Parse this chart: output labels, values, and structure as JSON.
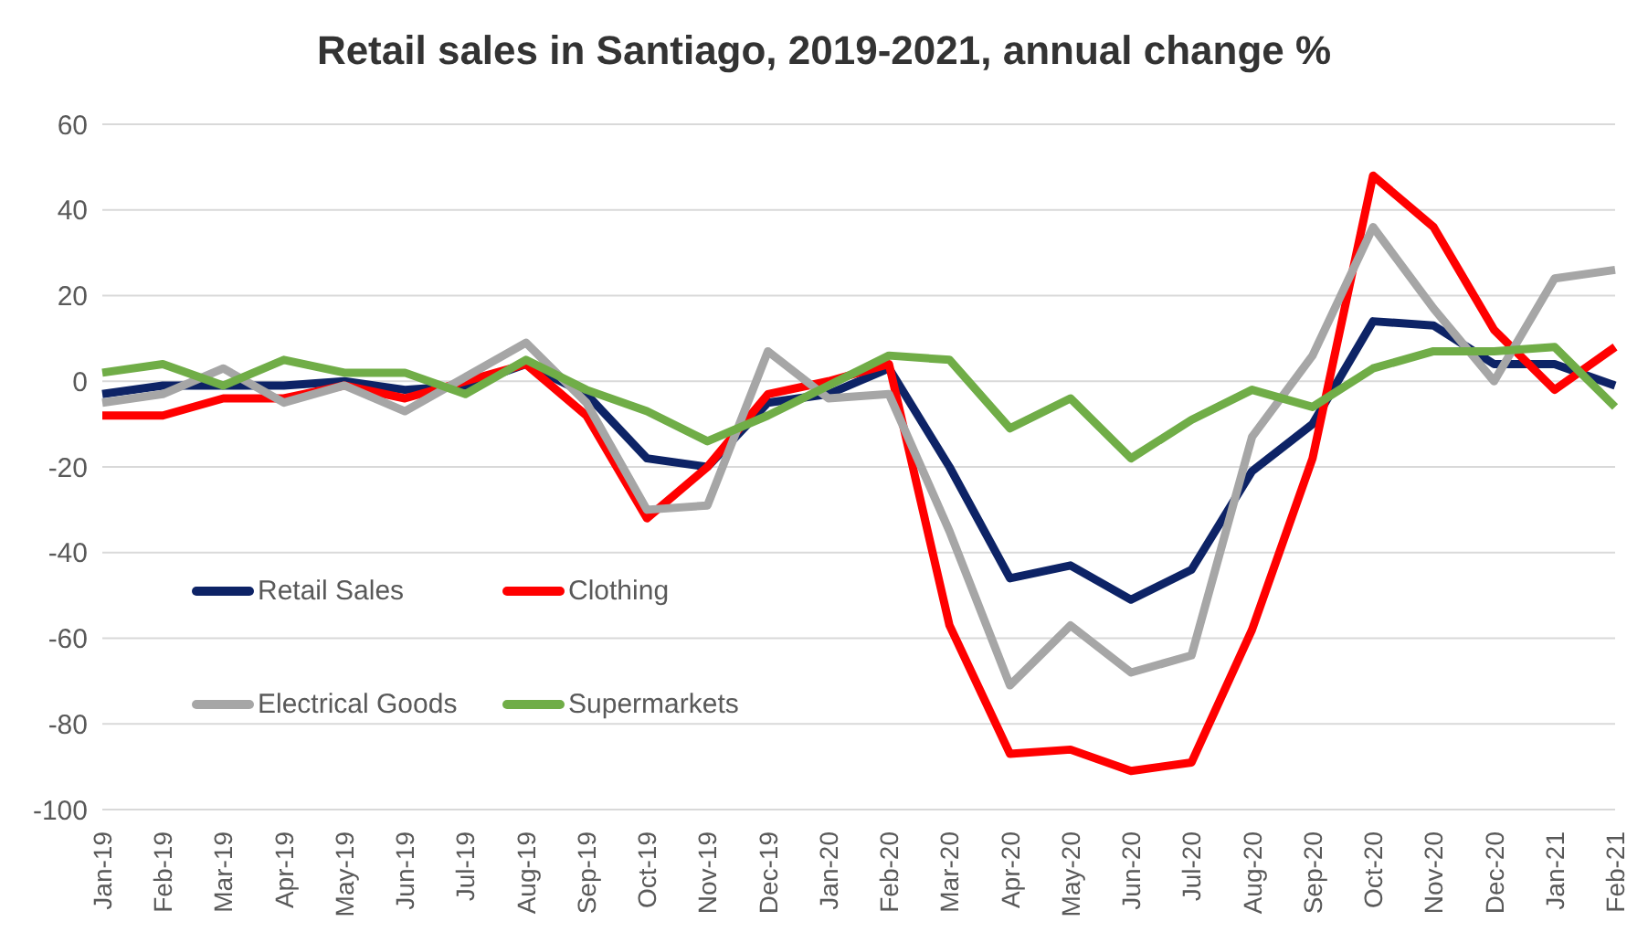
{
  "chart_data": {
    "type": "line",
    "title": "Retail sales in Santiago, 2019-2021, annual change %",
    "categories": [
      "Jan-19",
      "Feb-19",
      "Mar-19",
      "Apr-19",
      "May-19",
      "Jun-19",
      "Jul-19",
      "Aug-19",
      "Sep-19",
      "Oct-19",
      "Nov-19",
      "Dec-19",
      "Jan-20",
      "Feb-20",
      "Mar-20",
      "Apr-20",
      "May-20",
      "Jun-20",
      "Jul-20",
      "Aug-20",
      "Sep-20",
      "Oct-20",
      "Nov-20",
      "Dec-20",
      "Jan-21",
      "Feb-21"
    ],
    "series": [
      {
        "name": "Retail Sales",
        "color": "#0d2366",
        "values": [
          -3,
          -1,
          -1,
          -1,
          0,
          -2,
          -1,
          4,
          -3,
          -18,
          -20,
          -5,
          -3,
          3,
          -20,
          -46,
          -43,
          -51,
          -44,
          -21,
          -10,
          14,
          13,
          4,
          4,
          -1
        ]
      },
      {
        "name": "Clothing",
        "color": "#ff0000",
        "values": [
          -8,
          -8,
          -4,
          -4,
          -1,
          -4,
          0,
          4,
          -8,
          -32,
          -20,
          -3,
          0,
          4,
          -57,
          -87,
          -86,
          -91,
          -89,
          -58,
          -18,
          48,
          36,
          12,
          -2,
          8
        ]
      },
      {
        "name": "Electrical Goods",
        "color": "#a6a6a6",
        "values": [
          -5,
          -3,
          3,
          -5,
          -1,
          -7,
          1,
          9,
          -5,
          -30,
          -29,
          7,
          -4,
          -3,
          -35,
          -71,
          -57,
          -68,
          -64,
          -13,
          6,
          36,
          17,
          0,
          24,
          26
        ]
      },
      {
        "name": "Supermarkets",
        "color": "#70ad47",
        "values": [
          2,
          4,
          -1,
          5,
          2,
          2,
          -3,
          5,
          -2,
          -7,
          -14,
          -8,
          -1,
          6,
          5,
          -11,
          -4,
          -18,
          -9,
          -2,
          -6,
          3,
          7,
          7,
          8,
          -6
        ]
      }
    ],
    "ylim": [
      -100,
      60
    ],
    "yticks": [
      -100,
      -80,
      -60,
      -40,
      -20,
      0,
      20,
      40,
      60
    ],
    "grid": "y",
    "legend": "bottom left",
    "marker": "none",
    "line_style": "solid"
  }
}
